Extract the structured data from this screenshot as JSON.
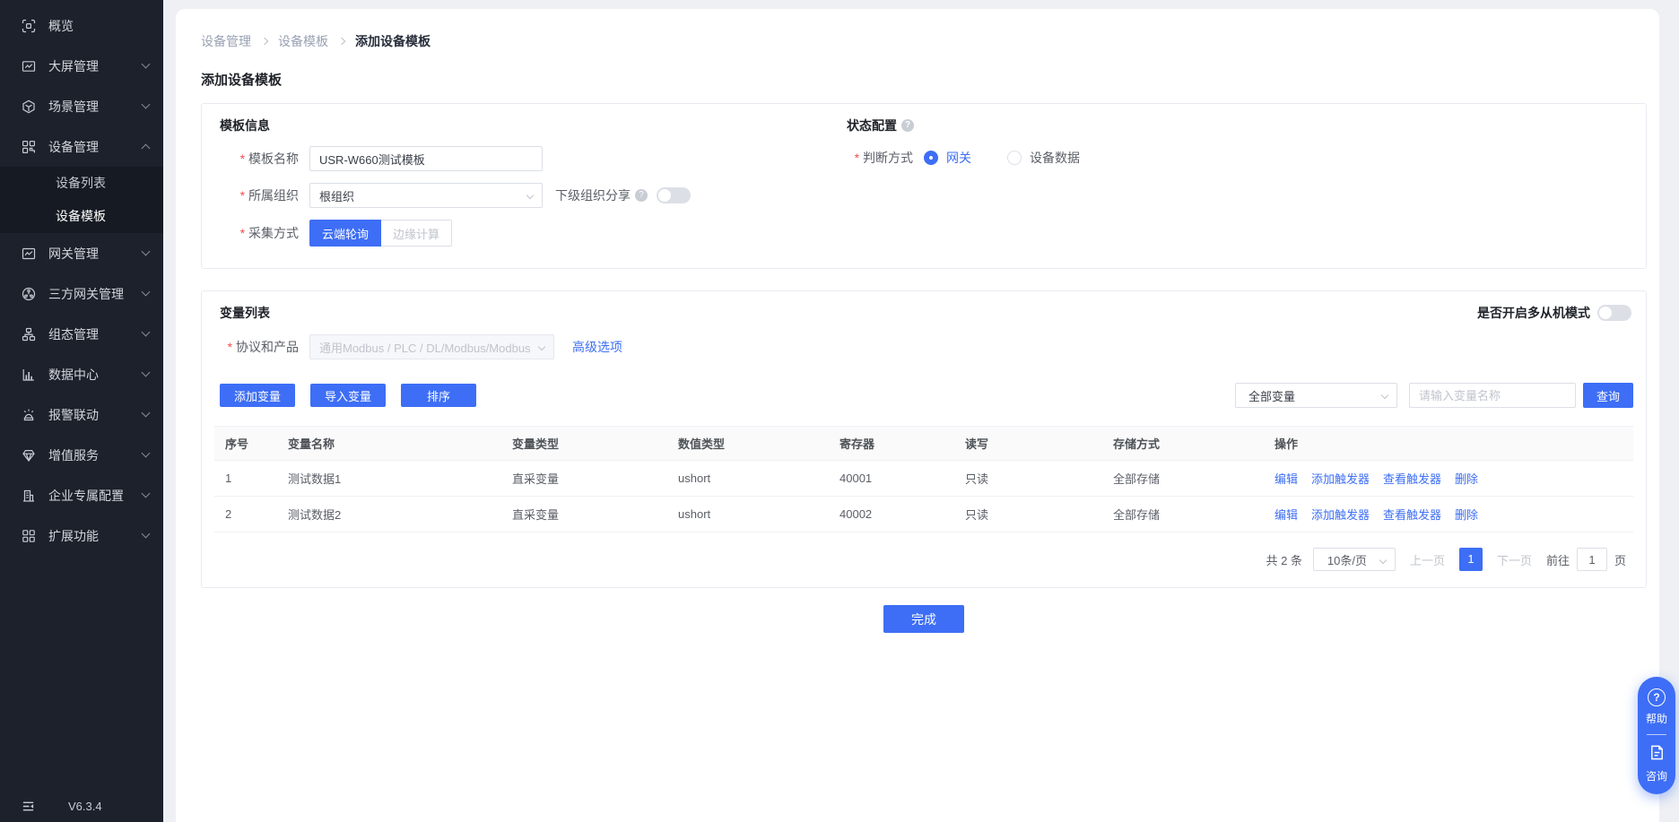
{
  "colors": {
    "primary": "#3d6ef5",
    "sidebar_bg": "#1d212b",
    "submenu_bg": "#161a23"
  },
  "sidebar": {
    "version": "V6.3.4",
    "items": [
      {
        "label": "概览",
        "icon": "overview-icon",
        "has_children": false
      },
      {
        "label": "大屏管理",
        "icon": "bigscreen-icon",
        "has_children": true
      },
      {
        "label": "场景管理",
        "icon": "scene-icon",
        "has_children": true
      },
      {
        "label": "设备管理",
        "icon": "device-icon",
        "has_children": true,
        "expanded": true,
        "children": [
          {
            "label": "设备列表",
            "active": false
          },
          {
            "label": "设备模板",
            "active": true
          }
        ]
      },
      {
        "label": "网关管理",
        "icon": "gateway-icon",
        "has_children": true
      },
      {
        "label": "三方网关管理",
        "icon": "third-party-gateway-icon",
        "has_children": true
      },
      {
        "label": "组态管理",
        "icon": "scada-icon",
        "has_children": true
      },
      {
        "label": "数据中心",
        "icon": "data-center-icon",
        "has_children": true
      },
      {
        "label": "报警联动",
        "icon": "alarm-icon",
        "has_children": true
      },
      {
        "label": "增值服务",
        "icon": "value-added-icon",
        "has_children": true
      },
      {
        "label": "企业专属配置",
        "icon": "enterprise-icon",
        "has_children": true
      },
      {
        "label": "扩展功能",
        "icon": "extension-icon",
        "has_children": true
      }
    ]
  },
  "breadcrumb": {
    "items": [
      "设备管理",
      "设备模板",
      "添加设备模板"
    ]
  },
  "page": {
    "title": "添加设备模板"
  },
  "template_info": {
    "title": "模板信息",
    "name": {
      "label": "模板名称",
      "value": "USR-W660测试模板"
    },
    "org": {
      "label": "所属组织",
      "value": "根组织"
    },
    "share": {
      "label": "下级组织分享",
      "enabled": false
    },
    "collect": {
      "label": "采集方式",
      "selected": "云端轮询",
      "options": [
        "云端轮询",
        "边缘计算"
      ]
    }
  },
  "status_config": {
    "title": "状态配置",
    "judge": {
      "label": "判断方式",
      "selected": "网关",
      "options": [
        "网关",
        "设备数据"
      ]
    }
  },
  "variables": {
    "title": "变量列表",
    "protocol": {
      "label": "协议和产品",
      "value": "通用Modbus / PLC / DL/Modbus/Modbus RTU",
      "disabled": true
    },
    "advanced_link": "高级选项",
    "multi_slave": {
      "label": "是否开启多从机模式",
      "enabled": false
    },
    "toolbar": {
      "add": "添加变量",
      "import": "导入变量",
      "sort": "排序",
      "filter_selected": "全部变量",
      "search_placeholder": "请输入变量名称",
      "search_button": "查询"
    },
    "table": {
      "headers": [
        "序号",
        "变量名称",
        "变量类型",
        "数值类型",
        "寄存器",
        "读写",
        "存储方式",
        "操作"
      ],
      "rows": [
        {
          "index": "1",
          "name": "测试数据1",
          "var_type": "直采变量",
          "data_type": "ushort",
          "register": "40001",
          "rw": "只读",
          "storage": "全部存储"
        },
        {
          "index": "2",
          "name": "测试数据2",
          "var_type": "直采变量",
          "data_type": "ushort",
          "register": "40002",
          "rw": "只读",
          "storage": "全部存储"
        }
      ],
      "row_actions": [
        "编辑",
        "添加触发器",
        "查看触发器",
        "删除"
      ]
    },
    "pagination": {
      "total": "共 2 条",
      "page_size": "10条/页",
      "prev": "上一页",
      "current": "1",
      "next": "下一页",
      "goto_label": "前往",
      "goto_value": "1",
      "unit": "页"
    }
  },
  "footer": {
    "finish_label": "完成"
  },
  "float_nav": {
    "help": "帮助",
    "consult": "咨询"
  }
}
